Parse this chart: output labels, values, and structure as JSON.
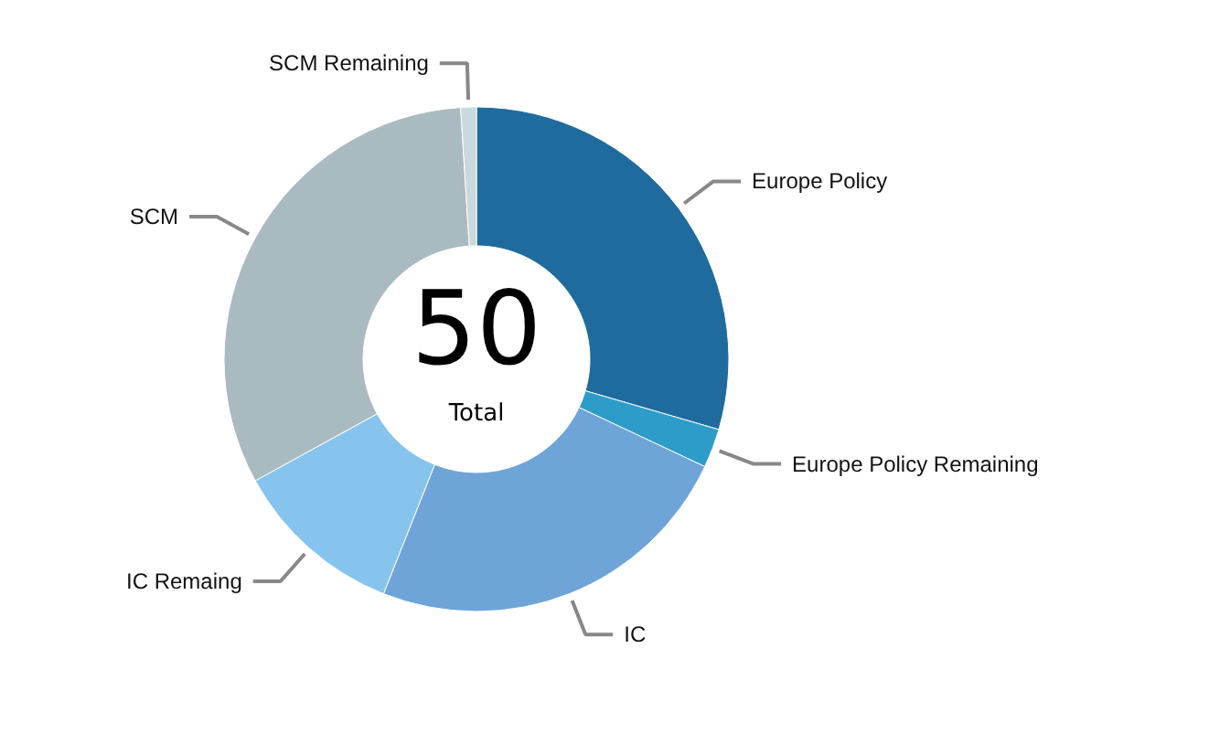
{
  "chart_data": {
    "type": "donut",
    "categories": [
      "Europe Policy",
      "Europe Policy Remaining",
      "IC",
      "IC Remaing",
      "SCM",
      "SCM Remaining"
    ],
    "values": [
      29.5,
      2.5,
      24,
      11,
      32,
      1
    ],
    "colors": [
      "#1f6b9e",
      "#2e9cc9",
      "#6ea4d8",
      "#86c4ee",
      "#aabac1",
      "#c9d9de"
    ],
    "annotations": [
      "50",
      "Total"
    ]
  }
}
